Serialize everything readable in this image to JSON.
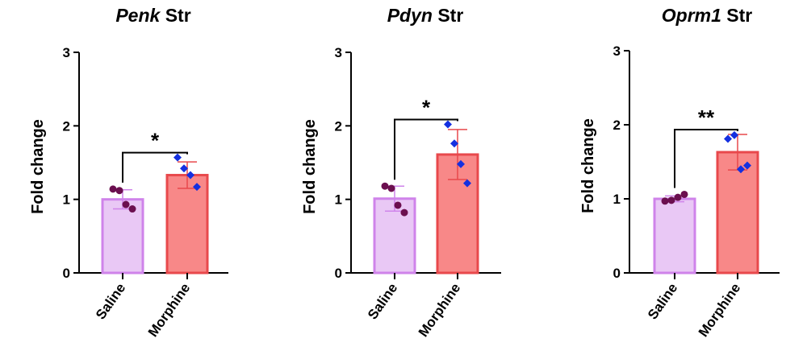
{
  "chart_data": [
    {
      "type": "bar",
      "title": {
        "gene": "Penk",
        "region": "Str"
      },
      "ylabel": "Fold change",
      "ylim": [
        0,
        3
      ],
      "yticks": [
        "0",
        "1",
        "2",
        "3"
      ],
      "categories": [
        "Saline",
        "Morphine"
      ],
      "values": [
        1.0,
        1.33
      ],
      "error": [
        0.13,
        0.18
      ],
      "points": [
        [
          1.14,
          1.12,
          0.93,
          0.87
        ],
        [
          1.57,
          1.42,
          1.33,
          1.17
        ]
      ],
      "significance": "*",
      "colors": {
        "bar_fill": [
          "#e9c8f5",
          "#f88888"
        ],
        "bar_edge": [
          "#cf83ea",
          "#e8494c"
        ],
        "points": [
          "#6b0f4f",
          "#1430e0"
        ],
        "error": [
          "#cf83ea",
          "#e8494c"
        ]
      }
    },
    {
      "type": "bar",
      "title": {
        "gene": "Pdyn",
        "region": "Str"
      },
      "ylabel": "Fold change",
      "ylim": [
        0,
        3
      ],
      "yticks": [
        "0",
        "1",
        "2",
        "3"
      ],
      "categories": [
        "Saline",
        "Morphine"
      ],
      "values": [
        1.01,
        1.61
      ],
      "error": [
        0.17,
        0.34
      ],
      "points": [
        [
          1.18,
          1.15,
          0.92,
          0.82
        ],
        [
          2.02,
          1.76,
          1.48,
          1.22
        ]
      ],
      "significance": "*",
      "colors": {
        "bar_fill": [
          "#e9c8f5",
          "#f88888"
        ],
        "bar_edge": [
          "#cf83ea",
          "#e8494c"
        ],
        "points": [
          "#6b0f4f",
          "#1430e0"
        ],
        "error": [
          "#cf83ea",
          "#e8494c"
        ]
      }
    },
    {
      "type": "bar",
      "title": {
        "gene": "Oprm1",
        "region": "Str"
      },
      "ylabel": "Fold change",
      "ylim": [
        0,
        3
      ],
      "yticks": [
        "0",
        "1",
        "2",
        "3"
      ],
      "categories": [
        "Saline",
        "Morphine"
      ],
      "values": [
        1.0,
        1.63
      ],
      "error": [
        0.04,
        0.24
      ],
      "points": [
        [
          0.97,
          0.98,
          1.02,
          1.06
        ],
        [
          1.81,
          1.86,
          1.4,
          1.45
        ]
      ],
      "significance": "**",
      "colors": {
        "bar_fill": [
          "#e9c8f5",
          "#f88888"
        ],
        "bar_edge": [
          "#cf83ea",
          "#e8494c"
        ],
        "points": [
          "#6b0f4f",
          "#1430e0"
        ],
        "error": [
          "#cf83ea",
          "#e8494c"
        ]
      }
    }
  ]
}
